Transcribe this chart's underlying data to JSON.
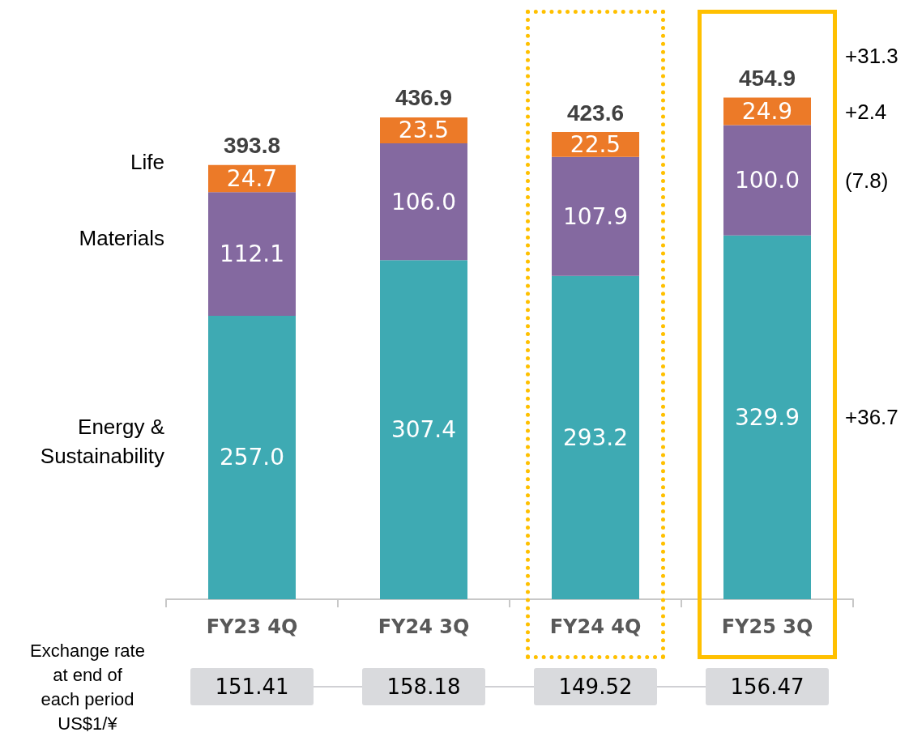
{
  "chart_data": {
    "type": "bar",
    "stacked": true,
    "legend": false,
    "categories": [
      "FY23 4Q",
      "FY24 3Q",
      "FY24 4Q",
      "FY25 3Q"
    ],
    "series": [
      {
        "name": "Energy & Sustainability",
        "color": "#3eaab3",
        "values": [
          257.0,
          307.4,
          293.2,
          329.9
        ],
        "value_labels": [
          "257.0",
          "307.4",
          "293.2",
          "329.9"
        ]
      },
      {
        "name": "Materials",
        "color": "#8469a0",
        "values": [
          112.1,
          106.0,
          107.9,
          100.0
        ],
        "value_labels": [
          "112.1",
          "106.0",
          "107.9",
          "100.0"
        ]
      },
      {
        "name": "Life",
        "color": "#ec7a28",
        "values": [
          24.7,
          23.5,
          22.5,
          24.9
        ],
        "value_labels": [
          "24.7",
          "23.5",
          "22.5",
          "24.9"
        ]
      }
    ],
    "totals": [
      "393.8",
      "436.9",
      "423.6",
      "454.9"
    ],
    "annotations": [
      "Exchange rate\nat end of\neach period\nUS$1/¥",
      "151.41",
      "158.18",
      "149.52",
      "156.47",
      "+36.7",
      "(7.8)",
      "+2.4",
      "+31.3"
    ]
  }
}
